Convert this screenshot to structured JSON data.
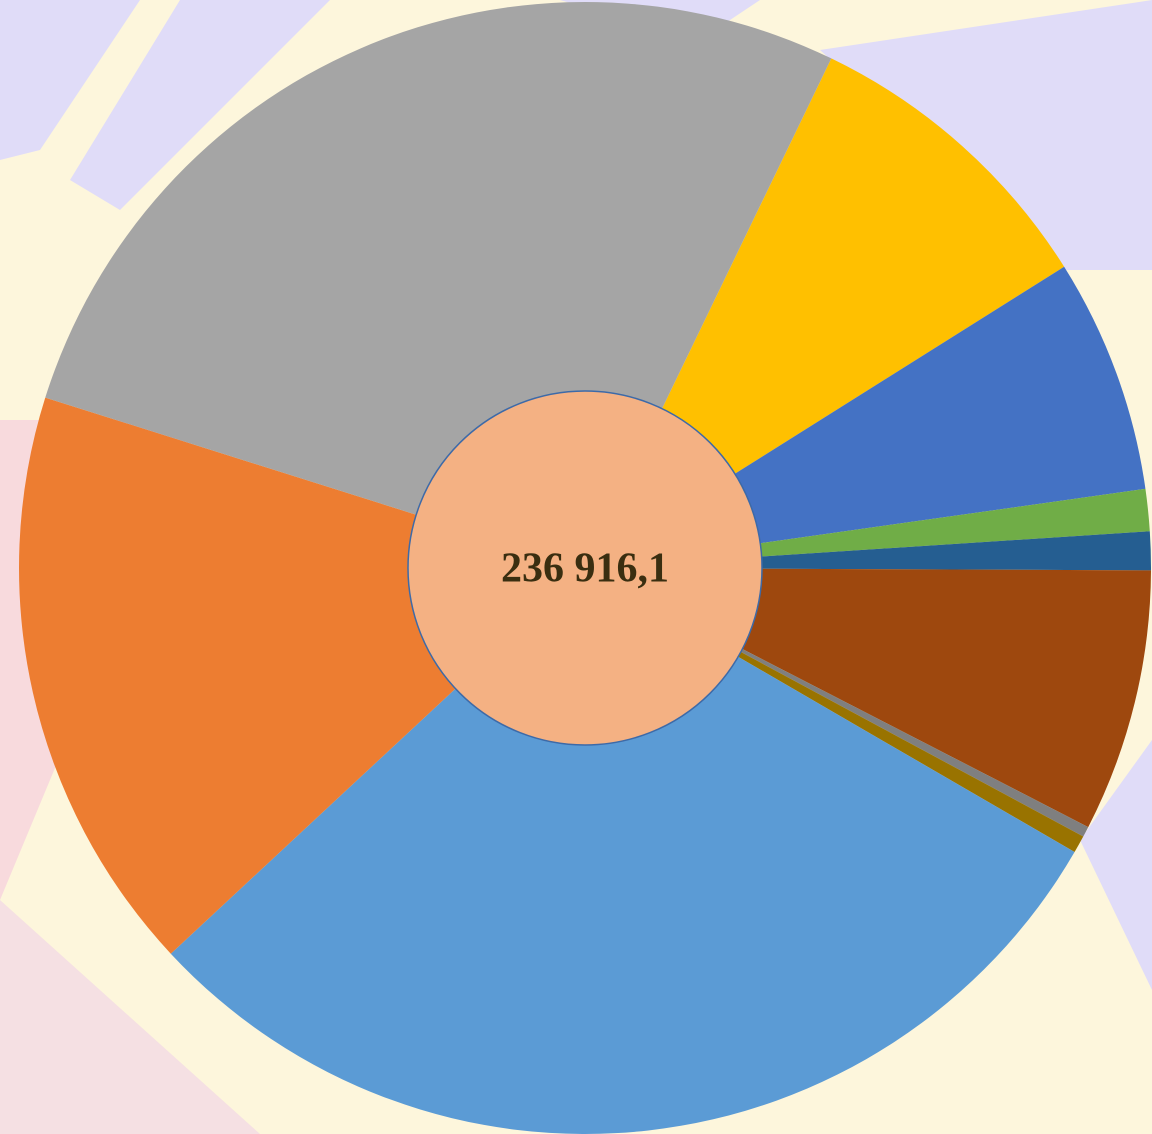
{
  "chart_data": {
    "type": "donut",
    "center_label": "236 916,1",
    "values": [
      8.9,
      6.7,
      1.2,
      1.1,
      7.5,
      0.3,
      0.5,
      29.7,
      16.8,
      27.3
    ],
    "colors": [
      "#ffc000",
      "#4472c4",
      "#70ad47",
      "#255e91",
      "#9e480e",
      "#7f7f7f",
      "#997300",
      "#5b9bd5",
      "#ed7d31",
      "#a5a5a5"
    ],
    "center_color": "#f4b183"
  }
}
